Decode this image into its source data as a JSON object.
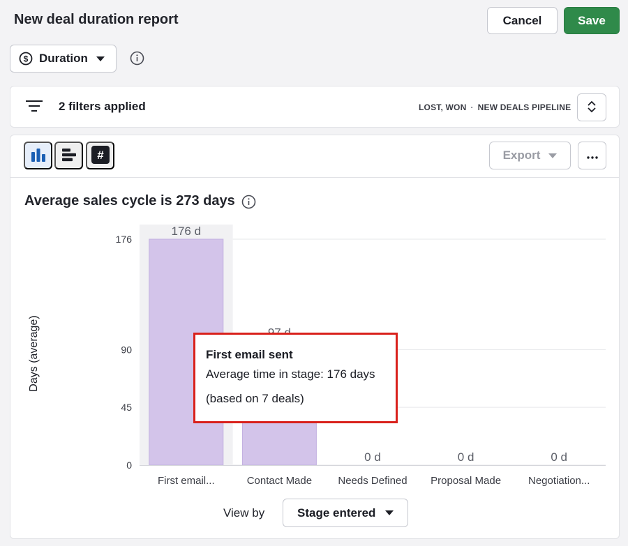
{
  "header": {
    "title": "New deal duration report",
    "cancel_label": "Cancel",
    "save_label": "Save"
  },
  "metric_selector": {
    "value": "Duration",
    "icon": "dollar-circle-icon"
  },
  "filters": {
    "label": "2 filters applied",
    "status": "LOST, WON",
    "separator": "·",
    "pipeline": "NEW DEALS PIPELINE"
  },
  "toolbar": {
    "views": [
      "bar-chart-icon",
      "horizontal-bar-icon",
      "number-icon"
    ],
    "active_view": "bar-chart-icon",
    "export_label": "Export",
    "more_icon": "more-icon"
  },
  "summary": {
    "title": "Average sales cycle is 273 days"
  },
  "chart_data": {
    "type": "bar",
    "title": "",
    "xlabel": "",
    "ylabel": "Days (average)",
    "categories": [
      "First email...",
      "Contact Made",
      "Needs Defined",
      "Proposal Made",
      "Negotiation..."
    ],
    "values": [
      176,
      97,
      0,
      0,
      0
    ],
    "data_labels": [
      "176 d",
      "97 d",
      "0 d",
      "0 d",
      "0 d"
    ],
    "yticks": [
      0,
      45,
      90,
      176
    ],
    "ylim": [
      0,
      176
    ],
    "grid": true,
    "highlighted_index": 0,
    "bar_color": "#d3c4ea",
    "bar_edge_color": "#c2afe0",
    "highlight_bg": "#f1f1f3"
  },
  "tooltip": {
    "title": "First email sent",
    "line": "Average time in stage: 176 days",
    "basis": "(based on 7 deals)"
  },
  "view_by": {
    "label": "View by",
    "value": "Stage entered"
  }
}
